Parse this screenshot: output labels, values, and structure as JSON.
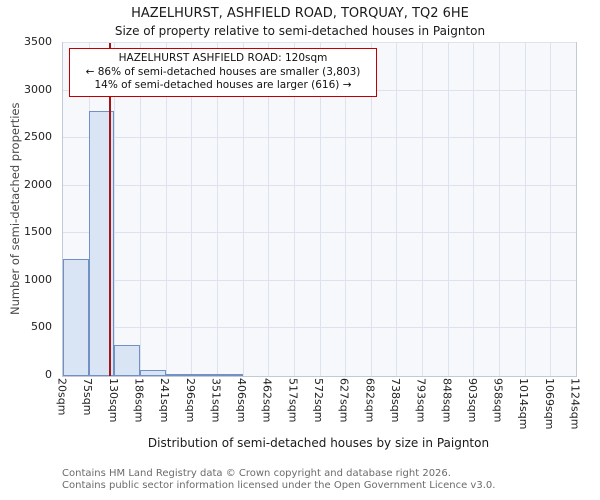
{
  "title": "HAZELHURST, ASHFIELD ROAD, TORQUAY, TQ2 6HE",
  "subtitle": "Size of property relative to semi-detached houses in Paignton",
  "chart_data": {
    "type": "bar",
    "categories": [
      "20sqm",
      "75sqm",
      "130sqm",
      "186sqm",
      "241sqm",
      "296sqm",
      "351sqm",
      "406sqm",
      "462sqm",
      "517sqm",
      "572sqm",
      "627sqm",
      "682sqm",
      "738sqm",
      "793sqm",
      "848sqm",
      "903sqm",
      "958sqm",
      "1014sqm",
      "1069sqm",
      "1124sqm"
    ],
    "values": [
      1230,
      2790,
      325,
      60,
      12,
      5,
      2,
      0,
      0,
      0,
      0,
      0,
      0,
      0,
      0,
      0,
      0,
      0,
      0,
      0
    ],
    "title": "HAZELHURST, ASHFIELD ROAD, TORQUAY, TQ2 6HE",
    "xlabel": "Distribution of semi-detached houses by size in Paignton",
    "ylabel": "Number of semi-detached properties",
    "ylim": [
      0,
      3500
    ],
    "yticks": [
      0,
      500,
      1000,
      1500,
      2000,
      2500,
      3000,
      3500
    ],
    "grid": true,
    "marker": {
      "label": "120sqm",
      "value_sqm": 120,
      "axis_min_sqm": 20,
      "axis_max_sqm": 1124,
      "color": "#a31515"
    },
    "bar_fill": "#d9e5f5",
    "bar_border": "#7191c4"
  },
  "annotation": {
    "line1": "HAZELHURST ASHFIELD ROAD: 120sqm",
    "line2": "← 86% of semi-detached houses are smaller (3,803)",
    "line3": "14% of semi-detached houses are larger (616) →"
  },
  "footer": {
    "line1": "Contains HM Land Registry data © Crown copyright and database right 2026.",
    "line2": "Contains public sector information licensed under the Open Government Licence v3.0."
  }
}
